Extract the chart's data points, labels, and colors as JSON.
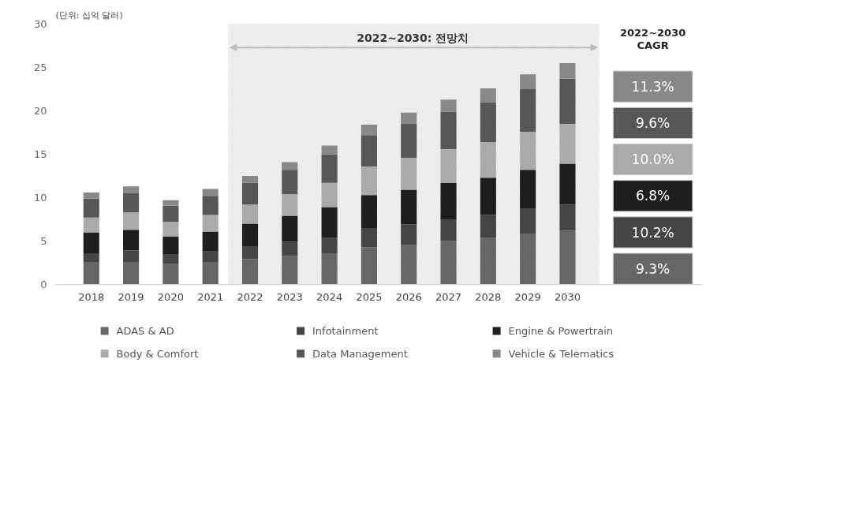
{
  "chart_data": {
    "type": "bar",
    "stacked": true,
    "ylabel": "(단위: 십억 달러)",
    "categories": [
      "2018",
      "2019",
      "2020",
      "2021",
      "2022",
      "2023",
      "2024",
      "2025",
      "2026",
      "2027",
      "2028",
      "2029",
      "2030"
    ],
    "series": [
      {
        "name": "ADAS & AD",
        "color": "#666666",
        "values": [
          2.6,
          2.6,
          2.4,
          2.6,
          2.9,
          3.3,
          3.6,
          4.3,
          4.6,
          5.0,
          5.4,
          5.8,
          6.2
        ]
      },
      {
        "name": "Infotainment",
        "color": "#454545",
        "values": [
          1.0,
          1.3,
          1.1,
          1.2,
          1.5,
          1.6,
          1.8,
          2.2,
          2.3,
          2.5,
          2.6,
          2.9,
          3.0
        ]
      },
      {
        "name": "Engine & Powertrain",
        "color": "#1e1e1e",
        "values": [
          2.4,
          2.4,
          2.0,
          2.3,
          2.6,
          3.0,
          3.5,
          3.8,
          4.0,
          4.2,
          4.3,
          4.5,
          4.7
        ]
      },
      {
        "name": "Body & Comfort",
        "color": "#aaaaaa",
        "values": [
          1.7,
          2.0,
          1.7,
          1.9,
          2.2,
          2.5,
          2.8,
          3.3,
          3.7,
          3.9,
          4.1,
          4.4,
          4.6
        ]
      },
      {
        "name": "Data Management",
        "color": "#575757",
        "values": [
          2.2,
          2.2,
          1.9,
          2.2,
          2.5,
          2.8,
          3.3,
          3.6,
          3.9,
          4.3,
          4.6,
          4.9,
          5.2
        ]
      },
      {
        "name": "Vehicle & Telematics",
        "color": "#888888",
        "values": [
          0.7,
          0.8,
          0.6,
          0.8,
          0.8,
          0.9,
          1.0,
          1.2,
          1.3,
          1.4,
          1.6,
          1.7,
          1.8
        ]
      }
    ],
    "ylim": [
      0,
      30
    ],
    "yticks": [
      0,
      5,
      10,
      15,
      20,
      25,
      30
    ],
    "bands": [
      {
        "axis": "x",
        "from": "2022",
        "to": "2030",
        "label": "2022~2030: 전망치",
        "color": "#f2f2f2"
      }
    ],
    "annotations": [
      "2022~2030 CAGR",
      "11.3%",
      "9.6%",
      "10.0%",
      "6.8%",
      "10.2%",
      "9.3%"
    ],
    "legend": "bottom",
    "grid": false
  }
}
